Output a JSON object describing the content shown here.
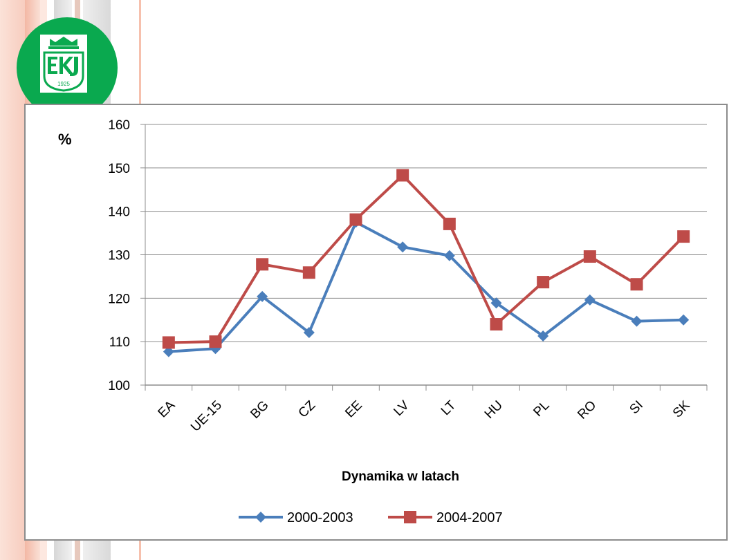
{
  "chart_data": {
    "type": "line",
    "categories": [
      "EA",
      "UE-15",
      "BG",
      "CZ",
      "EE",
      "LV",
      "LT",
      "HU",
      "PL",
      "RO",
      "SI",
      "SK"
    ],
    "series": [
      {
        "name": "2000-2003",
        "color": "#4a7ebb",
        "marker": "diamond",
        "values": [
          107.7,
          108.4,
          120.4,
          112.1,
          137.5,
          131.8,
          129.8,
          118.9,
          111.3,
          119.6,
          114.7,
          115.0
        ]
      },
      {
        "name": "2004-2007",
        "color": "#be4b48",
        "marker": "square",
        "values": [
          109.8,
          110.0,
          127.8,
          125.9,
          138.1,
          148.3,
          137.1,
          114.0,
          123.7,
          129.6,
          123.2,
          134.2
        ]
      }
    ],
    "ylabel": "%",
    "xlabel": "Dynamika w latach",
    "ylim": [
      100,
      160
    ],
    "yticks": [
      100,
      110,
      120,
      130,
      140,
      150,
      160
    ],
    "grid": true,
    "legend_position": "bottom"
  },
  "logo": {
    "text": "1925",
    "brand_color": "#0aa94f"
  }
}
